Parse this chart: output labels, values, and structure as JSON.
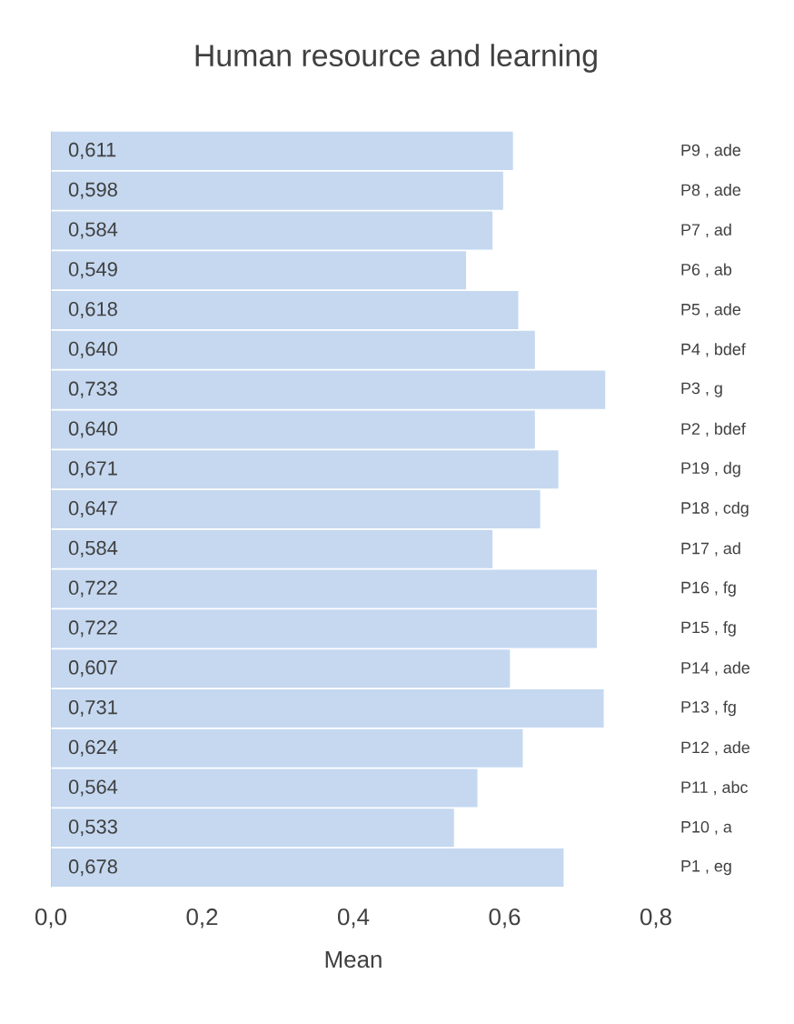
{
  "chart_data": {
    "type": "bar",
    "orientation": "horizontal",
    "title": "Human resource and learning",
    "xlabel": "Mean",
    "categories": [
      "P9 , ade",
      "P8 , ade",
      "P7 , ad",
      "P6 , ab",
      "P5 , ade",
      "P4 , bdef",
      "P3 , g",
      "P2 , bdef",
      "P19 , dg",
      "P18 , cdg",
      "P17 , ad",
      "P16 , fg",
      "P15 , fg",
      "P14 , ade",
      "P13 , fg",
      "P12 , ade",
      "P11 , abc",
      "P10 , a",
      "P1 , eg"
    ],
    "values": [
      0.611,
      0.598,
      0.584,
      0.549,
      0.618,
      0.64,
      0.733,
      0.64,
      0.671,
      0.647,
      0.584,
      0.722,
      0.722,
      0.607,
      0.731,
      0.624,
      0.564,
      0.533,
      0.678
    ],
    "value_labels": [
      "0,611",
      "0,598",
      "0,584",
      "0,549",
      "0,618",
      "0,640",
      "0,733",
      "0,640",
      "0,671",
      "0,647",
      "0,584",
      "0,722",
      "0,722",
      "0,607",
      "0,731",
      "0,624",
      "0,564",
      "0,533",
      "0,678"
    ],
    "color": "#c5d8f0",
    "xlim": [
      0,
      0.8
    ],
    "xticks": [
      {
        "value": 0,
        "label": "0,0"
      },
      {
        "value": 0.2,
        "label": "0,2"
      },
      {
        "value": 0.4,
        "label": "0,4"
      },
      {
        "value": 0.6,
        "label": "0,6"
      },
      {
        "value": 0.8,
        "label": "0,8"
      }
    ]
  }
}
